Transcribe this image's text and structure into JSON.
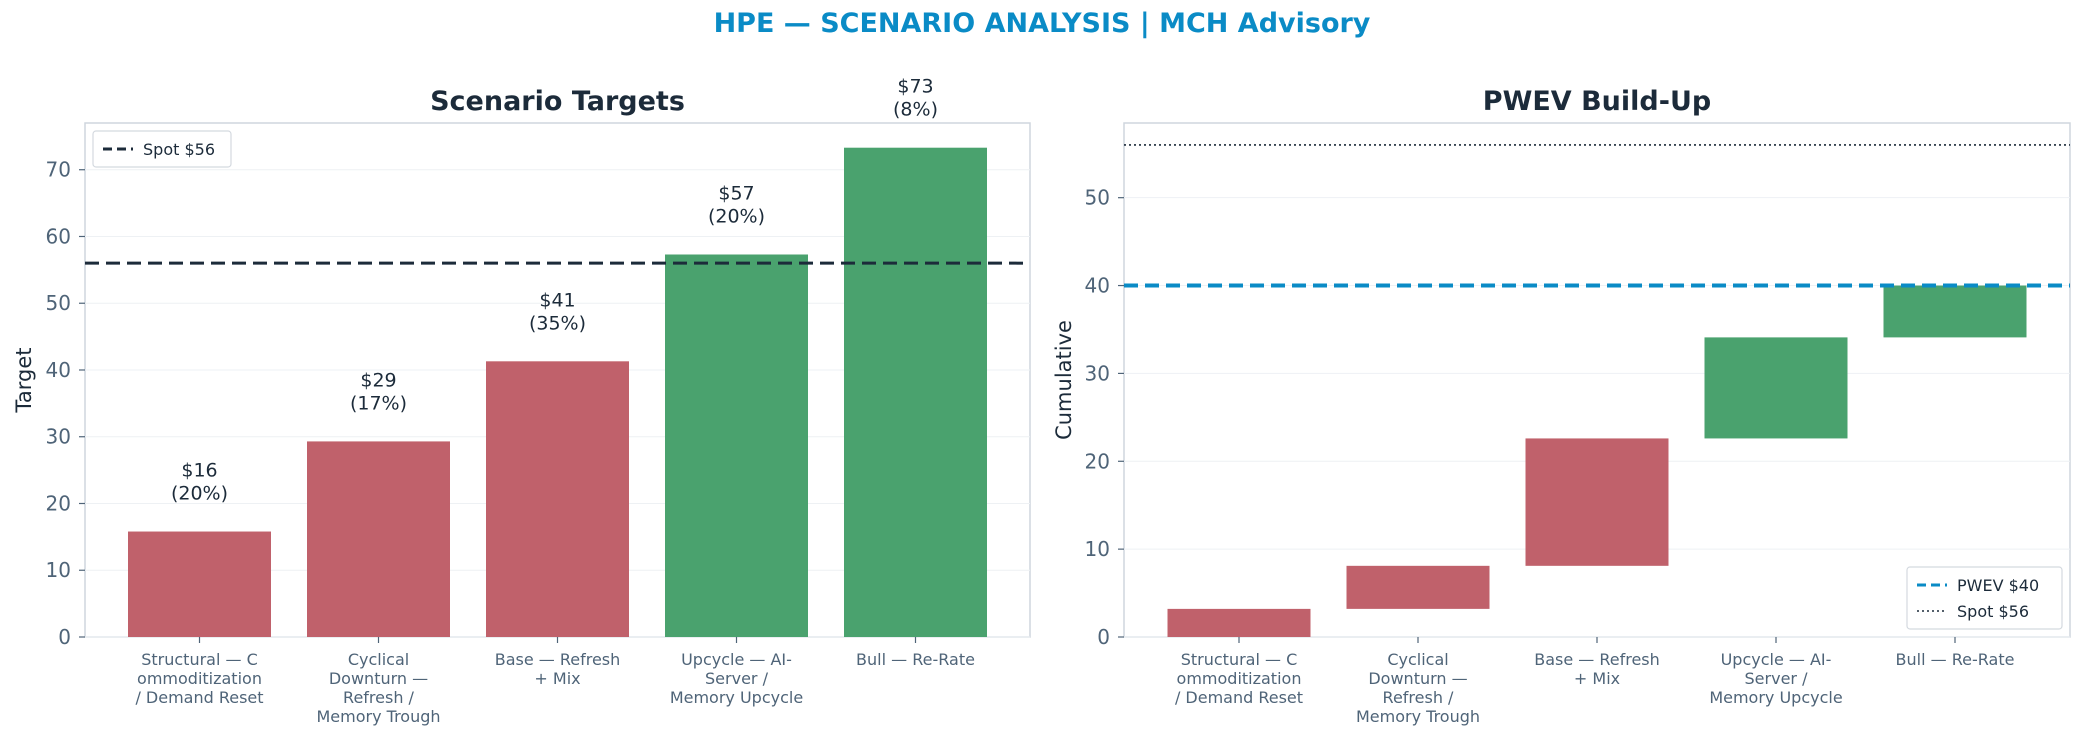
{
  "suptitle": "HPE — SCENARIO ANALYSIS | MCH Advisory",
  "colors": {
    "title": "#0a8bc6",
    "text_dark": "#1c2b3a",
    "tick_text": "#4f6478",
    "down": "#c0616b",
    "up": "#4aa26e",
    "pwev_line": "#0a8bc6",
    "spot_line": "#1c2b3a",
    "grid": "#eef1f4",
    "axes_edge": "#cfd6de"
  },
  "chart_data": [
    {
      "type": "bar",
      "title": "Scenario Targets",
      "ylabel": "Target",
      "xlabel": "",
      "ylim": [
        0,
        77
      ],
      "yticks": [
        0,
        10,
        20,
        30,
        40,
        50,
        60,
        70
      ],
      "grid": true,
      "categories": [
        [
          "Structural — C",
          "ommoditization",
          "/ Demand Reset"
        ],
        [
          "Cyclical",
          "Downturn —",
          "Refresh /",
          "Memory Trough"
        ],
        [
          "Base — Refresh",
          "+ Mix"
        ],
        [
          "Upcycle — AI-",
          "Server /",
          "Memory Upcycle"
        ],
        [
          "Bull — Re-Rate"
        ]
      ],
      "values": [
        15.8,
        29.3,
        41.3,
        57.3,
        73.3
      ],
      "value_labels": [
        "$16",
        "$29",
        "$41",
        "$57",
        "$73"
      ],
      "probability_labels": [
        "(20%)",
        "(17%)",
        "(35%)",
        "(20%)",
        "(8%)"
      ],
      "bar_colors": [
        "#c0616b",
        "#c0616b",
        "#c0616b",
        "#4aa26e",
        "#4aa26e"
      ],
      "reference_lines": [
        {
          "label": "Spot $56",
          "value": 56,
          "style": "dashed",
          "color": "#1c2b3a"
        }
      ],
      "legend": {
        "position": "upper-left",
        "entries": [
          "Spot $56"
        ]
      }
    },
    {
      "type": "waterfall",
      "title": "PWEV Build-Up",
      "ylabel": "Cumulative",
      "xlabel": "",
      "ylim": [
        0,
        58.5
      ],
      "yticks": [
        0,
        10,
        20,
        30,
        40,
        50
      ],
      "grid": true,
      "categories": [
        [
          "Structural — C",
          "ommoditization",
          "/ Demand Reset"
        ],
        [
          "Cyclical",
          "Downturn —",
          "Refresh /",
          "Memory Trough"
        ],
        [
          "Base — Refresh",
          "+ Mix"
        ],
        [
          "Upcycle — AI-",
          "Server /",
          "Memory Upcycle"
        ],
        [
          "Bull — Re-Rate"
        ]
      ],
      "segments": [
        {
          "start": 0,
          "end": 3.2
        },
        {
          "start": 3.2,
          "end": 8.1
        },
        {
          "start": 8.1,
          "end": 22.6
        },
        {
          "start": 22.6,
          "end": 34.1
        },
        {
          "start": 34.1,
          "end": 40.0
        }
      ],
      "bar_colors": [
        "#c0616b",
        "#c0616b",
        "#c0616b",
        "#4aa26e",
        "#4aa26e"
      ],
      "reference_lines": [
        {
          "label": "PWEV $40",
          "value": 40,
          "style": "dashed",
          "color": "#0a8bc6"
        },
        {
          "label": "Spot $56",
          "value": 56,
          "style": "dotted",
          "color": "#1c2b3a"
        }
      ],
      "legend": {
        "position": "lower-right",
        "entries": [
          "PWEV $40",
          "Spot $56"
        ]
      }
    }
  ]
}
